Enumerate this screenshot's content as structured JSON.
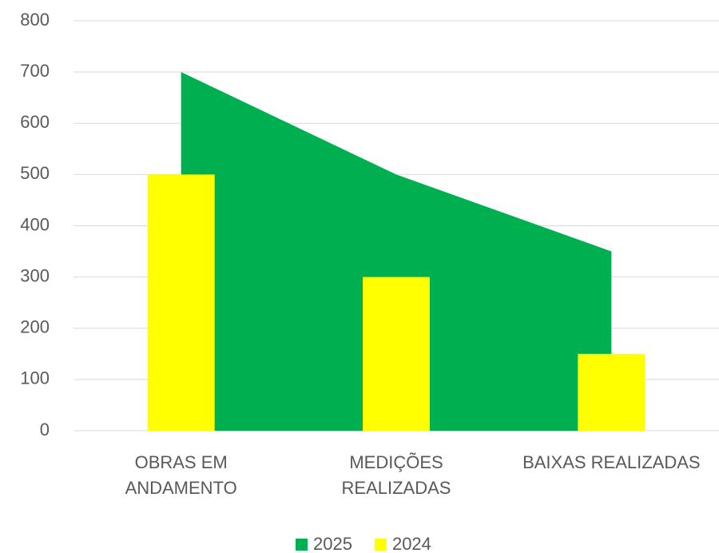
{
  "chart_data": {
    "type": "combo",
    "categories": [
      "OBRAS EM\nANDAMENTO",
      "MEDIÇÕES\nREALIZADAS",
      "BAIXAS REALIZADAS"
    ],
    "series": [
      {
        "name": "2025",
        "type": "area",
        "color": "#00b050",
        "values": [
          700,
          500,
          350
        ]
      },
      {
        "name": "2024",
        "type": "bar",
        "color": "#ffff00",
        "values": [
          500,
          300,
          150
        ]
      }
    ],
    "ylim": [
      0,
      800
    ],
    "yticks": [
      0,
      100,
      200,
      300,
      400,
      500,
      600,
      700,
      800
    ],
    "grid": true,
    "legend": "bottom"
  }
}
